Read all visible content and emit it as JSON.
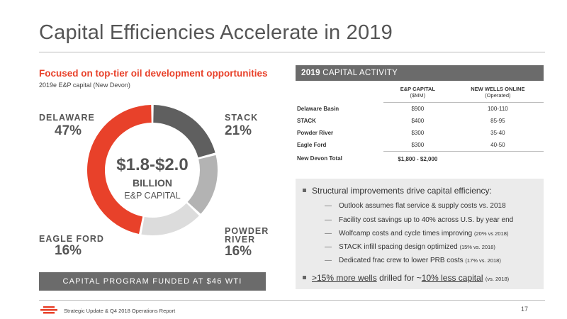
{
  "title": "Capital Efficiencies Accelerate in 2019",
  "left": {
    "heading": "Focused on top-tier oil development opportunities",
    "subheading": "2019e E&P capital (New Devon)",
    "segments": [
      {
        "name": "DELAWARE",
        "pct": "47%",
        "share": 47,
        "color": "#e8412a"
      },
      {
        "name": "STACK",
        "pct": "21%",
        "share": 21,
        "color": "#5f5f5f"
      },
      {
        "name": "POWDER RIVER",
        "name_line1": "POWDER",
        "name_line2": "RIVER",
        "pct": "16%",
        "share": 16,
        "color": "#b3b3b3"
      },
      {
        "name": "EAGLE FORD",
        "pct": "16%",
        "share": 16,
        "color": "#dcdcdc"
      }
    ],
    "center": {
      "amount": "$1.8-$2.0",
      "unit": "BILLION",
      "label": "E&P CAPITAL"
    },
    "funded_banner": "CAPITAL PROGRAM FUNDED AT $46 WTI"
  },
  "activity": {
    "header_bold": "2019",
    "header_rest": "CAPITAL ACTIVITY",
    "col1": "E&P CAPITAL",
    "col1_sub": "($MM)",
    "col2": "NEW WELLS ONLINE",
    "col2_sub": "(Operated)",
    "rows": [
      {
        "name": "Delaware Basin",
        "capital": "$900",
        "wells": "100-110"
      },
      {
        "name": "STACK",
        "capital": "$400",
        "wells": "85-95"
      },
      {
        "name": "Powder River",
        "capital": "$300",
        "wells": "35-40"
      },
      {
        "name": "Eagle Ford",
        "capital": "$300",
        "wells": "40-50"
      }
    ],
    "total": {
      "name": "New Devon Total",
      "capital": "$1,800 - $2,000"
    }
  },
  "bullets": {
    "main1": "Structural improvements drive capital efficiency:",
    "subs": [
      {
        "text": "Outlook assumes flat service & supply costs vs. 2018",
        "note": ""
      },
      {
        "text": "Facility cost savings up to 40% across U.S. by year end",
        "note": ""
      },
      {
        "text": "Wolfcamp costs and cycle times improving",
        "note": "(20% vs 2018)"
      },
      {
        "text": "STACK infill spacing design optimized",
        "note": "(15% vs. 2018)"
      },
      {
        "text": "Dedicated frac crew to lower PRB costs",
        "note": "(17% vs. 2018)"
      }
    ],
    "main2_u1": ">15% more wells",
    "main2_mid": "drilled for ~",
    "main2_u2": "10% less capital",
    "main2_note": "(vs. 2018)"
  },
  "footer": {
    "text": "Strategic Update & Q4 2018 Operations Report",
    "page": "17"
  },
  "colors": {
    "accent": "#e8412a",
    "dark_gray": "#6b6b6b",
    "panel": "#ebebeb"
  },
  "icons": {
    "logo": "devon-logo-icon",
    "bullet": "square-bullet-icon"
  }
}
